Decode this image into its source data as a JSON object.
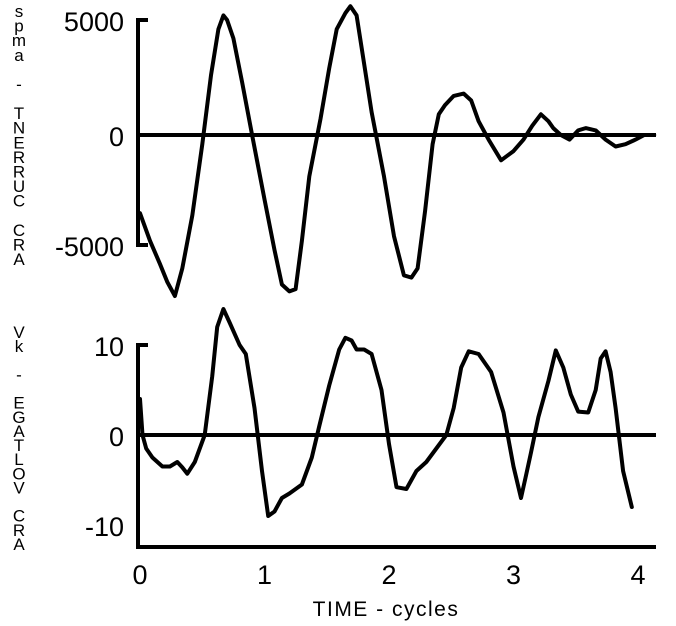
{
  "chart_data": [
    {
      "type": "line",
      "ylabel": "ARC CURRENT - amps",
      "xlim": [
        0,
        4.2
      ],
      "ylim": [
        -5000,
        5000
      ],
      "yticks": [
        5000,
        0,
        -5000
      ],
      "ytick_labels": [
        "5000",
        "0",
        "-5000"
      ],
      "series": [
        {
          "x": [
            0.0,
            0.08,
            0.16,
            0.22,
            0.28,
            0.34,
            0.42,
            0.5,
            0.57,
            0.63,
            0.67,
            0.7,
            0.75,
            0.82,
            0.9,
            1.0,
            1.08,
            1.14,
            1.2,
            1.25,
            1.3,
            1.36,
            1.45,
            1.52,
            1.58,
            1.65,
            1.69,
            1.74,
            1.78,
            1.86,
            1.96,
            2.04,
            2.12,
            2.18,
            2.23,
            2.29,
            2.35,
            2.4,
            2.45,
            2.52,
            2.6,
            2.66,
            2.72,
            2.8,
            2.9,
            3.0,
            3.08,
            3.15,
            3.22,
            3.28,
            3.32,
            3.38,
            3.45,
            3.52,
            3.58,
            3.66,
            3.74,
            3.82,
            3.9,
            3.98,
            4.05,
            4.13
          ],
          "values": [
            -3400,
            -4600,
            -5600,
            -6400,
            -7000,
            -5800,
            -3500,
            -400,
            2600,
            4600,
            5200,
            5000,
            4200,
            2300,
            0,
            -2800,
            -5000,
            -6500,
            -6800,
            -6700,
            -4600,
            -1800,
            700,
            2900,
            4600,
            5300,
            5600,
            5200,
            3800,
            1000,
            -1800,
            -4400,
            -6100,
            -6200,
            -5800,
            -3300,
            -400,
            900,
            1300,
            1700,
            1800,
            1500,
            600,
            -200,
            -1100,
            -700,
            -200,
            400,
            900,
            600,
            300,
            0,
            -200,
            200,
            300,
            200,
            -200,
            -500,
            -400,
            -200,
            0,
            0
          ]
        }
      ]
    },
    {
      "type": "line",
      "ylabel": "ARC VOLTAGE - kV",
      "xlabel": "TIME - cycles",
      "xlim": [
        0,
        4.2
      ],
      "ylim": [
        -12,
        15
      ],
      "yticks": [
        10,
        0,
        -10
      ],
      "ytick_labels": [
        "10",
        "0",
        "-10"
      ],
      "xticks": [
        0,
        1,
        2,
        3,
        4
      ],
      "xtick_labels": [
        "0",
        "1",
        "2",
        "3",
        "4"
      ],
      "series": [
        {
          "x": [
            0.0,
            0.02,
            0.05,
            0.1,
            0.18,
            0.24,
            0.3,
            0.34,
            0.38,
            0.44,
            0.52,
            0.58,
            0.62,
            0.67,
            0.72,
            0.8,
            0.85,
            0.92,
            0.98,
            1.03,
            1.08,
            1.14,
            1.2,
            1.3,
            1.38,
            1.44,
            1.52,
            1.6,
            1.65,
            1.7,
            1.74,
            1.8,
            1.86,
            1.94,
            2.0,
            2.06,
            2.14,
            2.22,
            2.3,
            2.38,
            2.46,
            2.52,
            2.58,
            2.64,
            2.72,
            2.82,
            2.92,
            3.0,
            3.06,
            3.1,
            3.14,
            3.2,
            3.28,
            3.34,
            3.4,
            3.46,
            3.52,
            3.6,
            3.66,
            3.7,
            3.74,
            3.78,
            3.82,
            3.88,
            3.95
          ],
          "values": [
            4,
            0,
            -1.5,
            -2.5,
            -3.5,
            -3.5,
            -3,
            -3.6,
            -4.3,
            -3,
            0,
            6.5,
            12,
            14,
            12.5,
            10,
            9,
            3,
            -4,
            -9,
            -8.5,
            -7,
            -6.5,
            -5.5,
            -2.5,
            1,
            5.5,
            9.5,
            10.8,
            10.5,
            9.5,
            9.5,
            9,
            5,
            -1,
            -5.8,
            -6,
            -4,
            -3,
            -1.5,
            0,
            3,
            7.5,
            9.3,
            9,
            7,
            2.5,
            -3.5,
            -7,
            -4.5,
            -2,
            2,
            6,
            9.4,
            7.5,
            4.5,
            2.6,
            2.5,
            5,
            8.5,
            9.3,
            7,
            3,
            -4,
            -8
          ]
        }
      ]
    }
  ]
}
